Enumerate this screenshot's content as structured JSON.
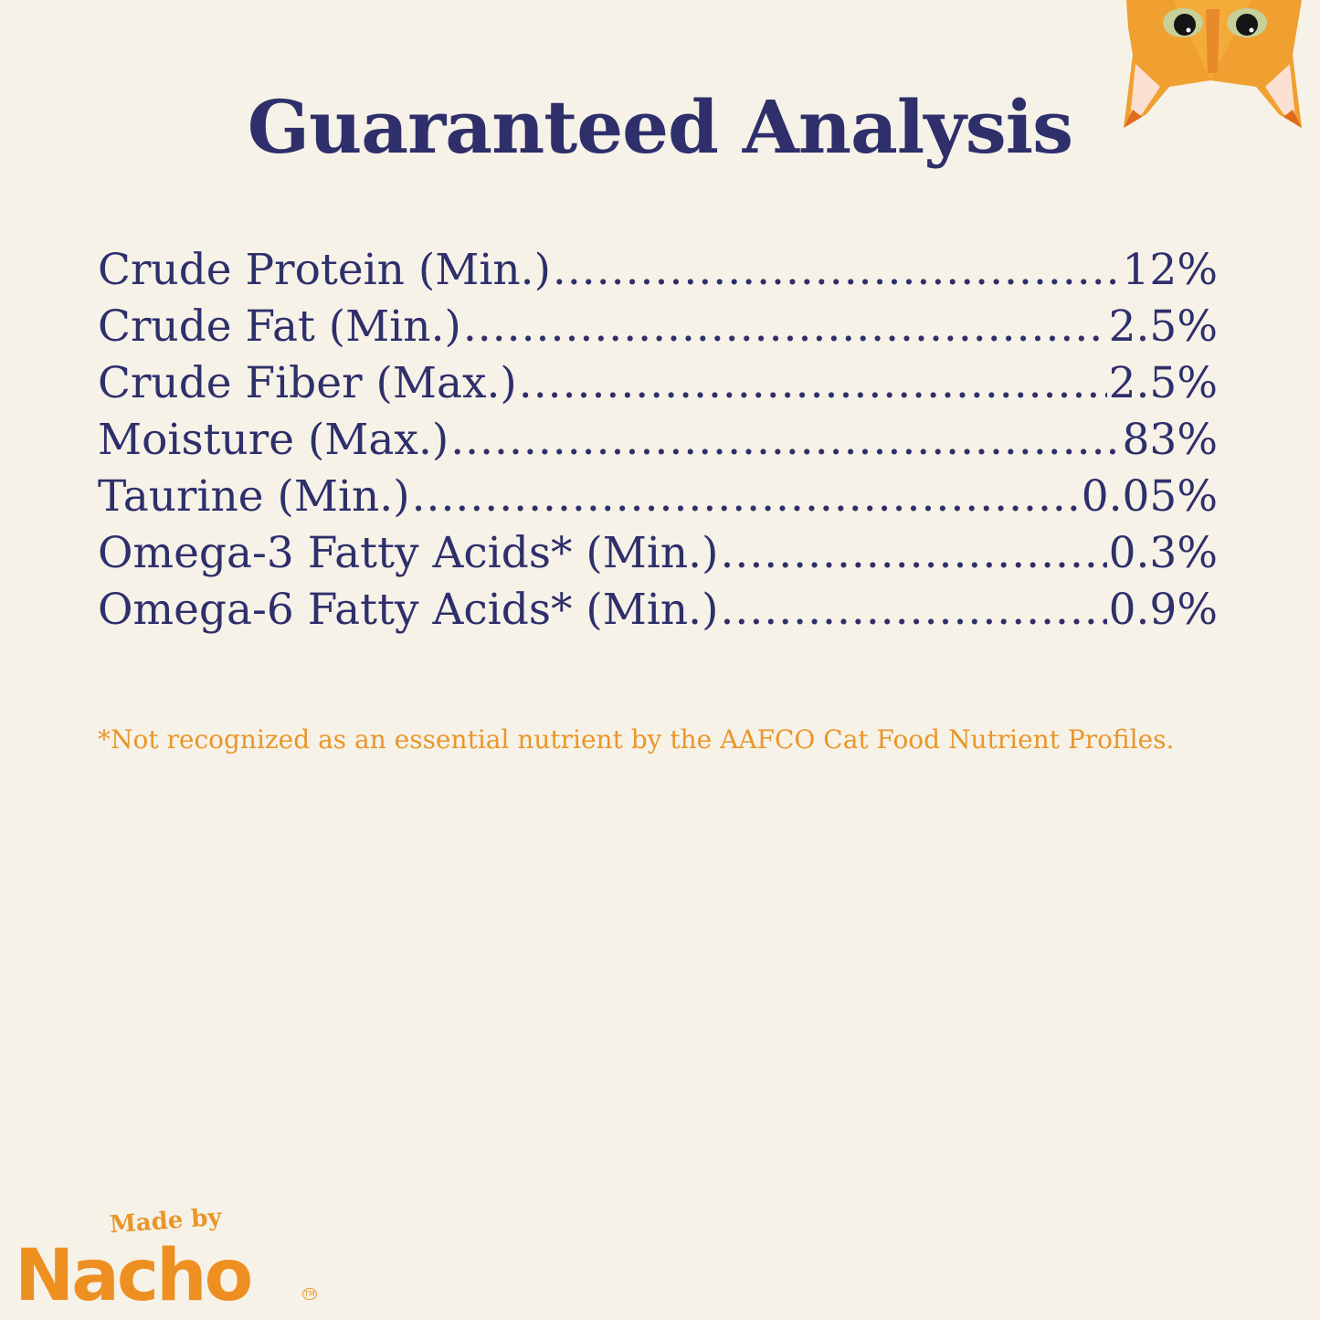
{
  "title": "Guaranteed Analysis",
  "analysis": [
    {
      "label": "Crude Protein (Min.)",
      "value": "12%"
    },
    {
      "label": "Crude Fat (Min.)",
      "value": "2.5%"
    },
    {
      "label": "Crude Fiber (Max.)",
      "value": "2.5%"
    },
    {
      "label": "Moisture (Max.)",
      "value": "83%"
    },
    {
      "label": "Taurine (Min.)",
      "value": "0.05%"
    },
    {
      "label": "Omega-3 Fatty Acids* (Min.)",
      "value": "0.3%"
    },
    {
      "label": "Omega-6 Fatty Acids* (Min.)",
      "value": "0.9%"
    }
  ],
  "footnote": "*Not recognized as an essential nutrient by the AAFCO Cat Food Nutrient Profiles.",
  "logo": {
    "made_by": "Made by",
    "brand": "Nacho",
    "tm": "TM"
  },
  "colors": {
    "background": "#f6f2e8",
    "text": "#2e2f6b",
    "accent": "#e9962a"
  },
  "icons": {
    "corner": "cat-face-icon"
  }
}
